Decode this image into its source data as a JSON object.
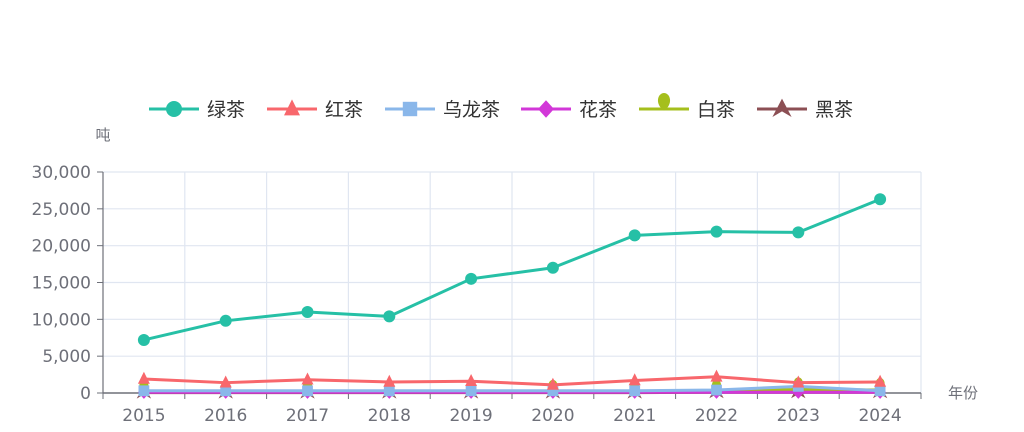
{
  "chart_data": {
    "type": "line",
    "title": "",
    "ylabel": "吨",
    "xlabel": "年份",
    "categories": [
      "2015",
      "2016",
      "2017",
      "2018",
      "2019",
      "2020",
      "2021",
      "2022",
      "2023",
      "2024"
    ],
    "ylim": [
      0,
      30000
    ],
    "yticks": [
      "0",
      "5,000",
      "10,000",
      "15,000",
      "20,000",
      "25,000",
      "30,000"
    ],
    "grid": true,
    "legend_position": "top-center",
    "series": [
      {
        "name": "绿茶",
        "color": "#26c0a6",
        "marker": "circle",
        "values": [
          7200,
          9800,
          11000,
          10400,
          15500,
          17000,
          21400,
          21900,
          21800,
          26300
        ]
      },
      {
        "name": "红茶",
        "color": "#f8676c",
        "marker": "triangle",
        "values": [
          1900,
          1400,
          1800,
          1500,
          1600,
          1100,
          1700,
          2200,
          1400,
          1500
        ]
      },
      {
        "name": "乌龙茶",
        "color": "#8ab7ea",
        "marker": "square",
        "values": [
          300,
          300,
          300,
          300,
          300,
          300,
          300,
          400,
          900,
          300
        ]
      },
      {
        "name": "花茶",
        "color": "#d237d8",
        "marker": "diamond",
        "values": [
          100,
          100,
          100,
          100,
          100,
          100,
          100,
          100,
          100,
          100
        ]
      },
      {
        "name": "白茶",
        "color": "#a5bf1c",
        "marker": "pin",
        "values": [
          150,
          150,
          150,
          200,
          200,
          150,
          200,
          200,
          500,
          400
        ]
      },
      {
        "name": "黑茶",
        "color": "#8c4f54",
        "marker": "arrow",
        "values": [
          50,
          50,
          50,
          50,
          50,
          50,
          50,
          100,
          100,
          100
        ]
      }
    ]
  }
}
